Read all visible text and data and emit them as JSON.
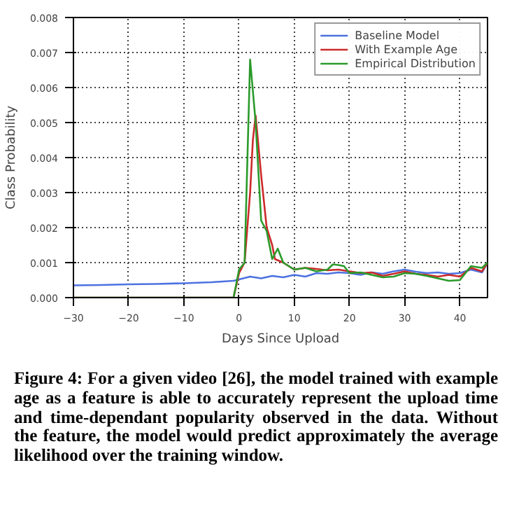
{
  "chart_data": {
    "type": "line",
    "xlabel": "Days Since Upload",
    "ylabel": "Class Probability",
    "xlim": [
      -30,
      45
    ],
    "xticks": [
      {
        "value": -30,
        "label": "−30"
      },
      {
        "value": -20,
        "label": "−20"
      },
      {
        "value": -10,
        "label": "−10"
      },
      0,
      10,
      20,
      30,
      40
    ],
    "ylim": [
      0,
      0.008
    ],
    "yticks": [
      {
        "value": 0,
        "label": "0.000"
      },
      0.001,
      0.002,
      0.003,
      0.004,
      0.005,
      0.006,
      0.007,
      0.008
    ],
    "grid": true,
    "legend": "top right",
    "line_style": "solid",
    "series": [
      {
        "name": "Baseline Model",
        "color": "#4c72e0",
        "x": [
          -30,
          -25,
          -20,
          -15,
          -10,
          -5,
          -1,
          0,
          2,
          4,
          6,
          8,
          10,
          12,
          14,
          16,
          18,
          20,
          22,
          24,
          26,
          28,
          30,
          32,
          34,
          36,
          38,
          40,
          42,
          44,
          45
        ],
        "values": [
          0.00035,
          0.00036,
          0.00038,
          0.00039,
          0.00041,
          0.00044,
          0.00048,
          0.00052,
          0.0006,
          0.00055,
          0.00062,
          0.00058,
          0.00065,
          0.0006,
          0.0007,
          0.00068,
          0.00072,
          0.0007,
          0.00065,
          0.00072,
          0.00068,
          0.00075,
          0.0008,
          0.00074,
          0.0007,
          0.00072,
          0.00068,
          0.0007,
          0.0008,
          0.00072,
          0.001
        ]
      },
      {
        "name": "With Example Age",
        "color": "#cc2a2a",
        "x": [
          -30,
          -2,
          -1,
          0,
          1,
          2,
          2.5,
          3,
          4,
          5,
          6,
          6.5,
          8,
          10,
          12,
          14,
          16,
          18,
          20,
          22,
          24,
          26,
          28,
          30,
          32,
          34,
          36,
          38,
          40,
          42,
          44,
          45
        ],
        "values": [
          0,
          0,
          0,
          0.0007,
          0.001,
          0.003,
          0.0045,
          0.0052,
          0.0035,
          0.002,
          0.0015,
          0.0011,
          0.001,
          0.0008,
          0.00085,
          0.00082,
          0.00078,
          0.0008,
          0.00075,
          0.0007,
          0.00072,
          0.00062,
          0.00068,
          0.00075,
          0.00068,
          0.00065,
          0.0006,
          0.00065,
          0.0006,
          0.00085,
          0.00075,
          0.001
        ]
      },
      {
        "name": "Empirical Distribution",
        "color": "#2a9a2a",
        "x": [
          -30,
          -2,
          -1,
          0,
          1,
          2,
          3,
          4,
          5,
          6,
          7,
          8,
          10,
          12,
          14,
          16,
          17,
          18,
          19,
          20,
          22,
          24,
          26,
          28,
          30,
          32,
          34,
          36,
          38,
          40,
          42,
          44,
          45
        ],
        "values": [
          0,
          0,
          0,
          0.0008,
          0.001,
          0.0068,
          0.005,
          0.0022,
          0.0019,
          0.0011,
          0.0014,
          0.001,
          0.0008,
          0.00085,
          0.00075,
          0.0008,
          0.00095,
          0.00093,
          0.0009,
          0.0007,
          0.00072,
          0.00065,
          0.00058,
          0.0006,
          0.0007,
          0.00068,
          0.00062,
          0.00055,
          0.00048,
          0.0005,
          0.0009,
          0.00085,
          0.001
        ]
      }
    ],
    "annotations": [
      "Figure 4: For a given video [26], the model trained with example age as a feature is able to accurately represent the upload time and time-dependant popularity observed in the data. Without the feature, the model would predict approximately the average likelihood over the training window."
    ]
  }
}
